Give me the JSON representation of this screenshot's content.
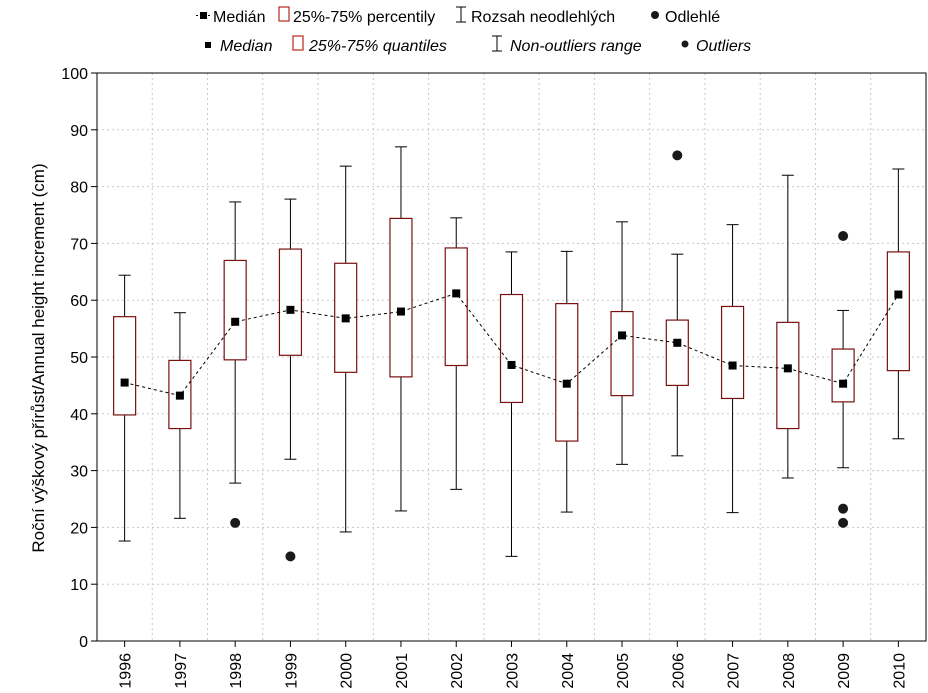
{
  "legend": {
    "row1": {
      "median": "Medián",
      "quantiles": "25%-75% percentily",
      "range": "Rozsah neodlehlých",
      "outliers": "Odlehlé"
    },
    "row2": {
      "median": "Median",
      "quantiles": "25%-75% quantiles",
      "range": "Non-outliers range",
      "outliers": "Outliers"
    }
  },
  "colors": {
    "box_stroke": "#7a1010",
    "whisker": "#000000",
    "median_marker": "#000000",
    "outlier": "#1a1a1a",
    "grid": "#c8c8c8"
  },
  "chart_data": {
    "type": "box",
    "title": "",
    "xlabel": "",
    "ylabel": "Roční výškový přírůst/Annual height increment (cm)",
    "ylim": [
      0,
      100
    ],
    "yticks": [
      0,
      10,
      20,
      30,
      40,
      50,
      60,
      70,
      80,
      90,
      100
    ],
    "grid": true,
    "legend_position": "top",
    "median_line": "dashed",
    "categories": [
      "1996",
      "1997",
      "1998",
      "1999",
      "2000",
      "2001",
      "2002",
      "2003",
      "2004",
      "2005",
      "2006",
      "2007",
      "2008",
      "2009",
      "2010"
    ],
    "median": [
      45.5,
      43.2,
      56.2,
      58.3,
      56.8,
      58.0,
      61.2,
      48.6,
      45.3,
      53.8,
      52.5,
      48.5,
      48.0,
      45.3,
      61.0
    ],
    "q1": [
      39.8,
      37.4,
      49.5,
      50.3,
      47.3,
      46.5,
      48.5,
      42.0,
      35.2,
      43.2,
      45.0,
      42.7,
      37.4,
      42.1,
      47.6
    ],
    "q3": [
      57.1,
      49.4,
      67.0,
      69.0,
      66.5,
      74.4,
      69.2,
      61.0,
      59.4,
      58.0,
      56.5,
      58.9,
      56.1,
      51.4,
      68.5
    ],
    "whisker_low": [
      17.6,
      21.6,
      27.8,
      32.0,
      19.2,
      22.9,
      26.7,
      14.9,
      22.7,
      31.1,
      32.6,
      22.6,
      28.7,
      30.5,
      35.6
    ],
    "whisker_high": [
      64.4,
      57.8,
      77.3,
      77.8,
      83.6,
      87.0,
      74.5,
      68.5,
      68.6,
      73.8,
      68.1,
      73.3,
      82.0,
      58.2,
      83.1
    ],
    "outliers": [
      [],
      [],
      [
        20.8
      ],
      [
        14.9
      ],
      [],
      [],
      [],
      [],
      [],
      [],
      [
        85.5
      ],
      [],
      [],
      [
        71.3,
        23.3,
        20.8
      ],
      []
    ]
  }
}
